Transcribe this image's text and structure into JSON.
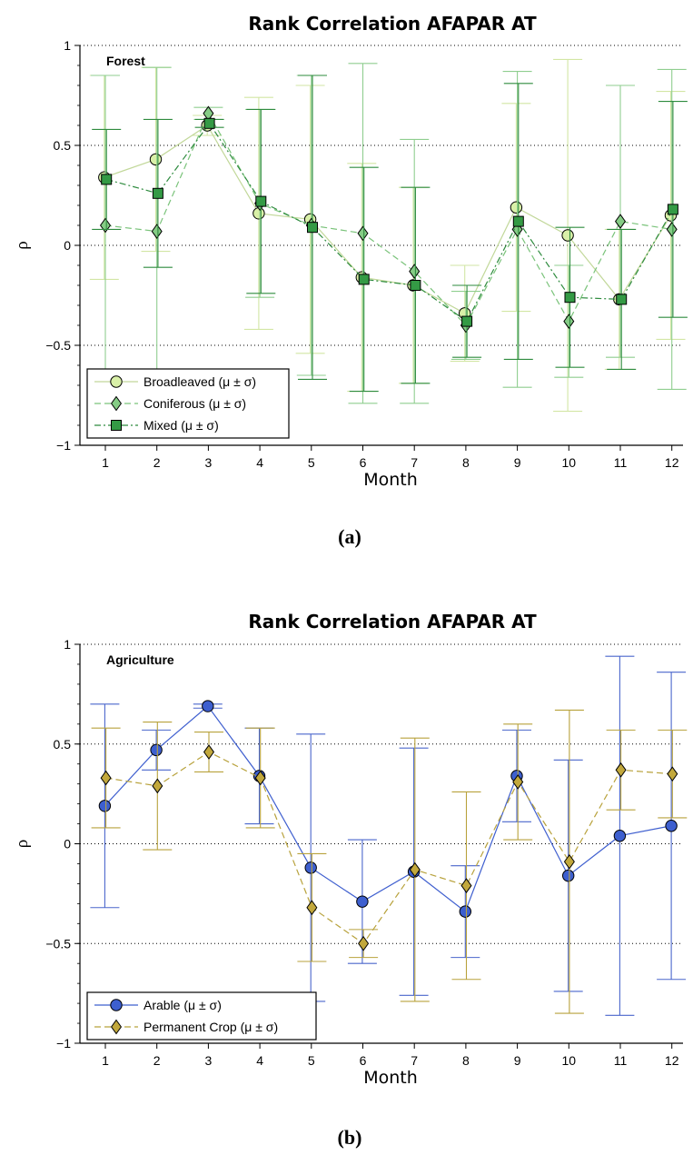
{
  "chart_data": [
    {
      "type": "line",
      "title": "Rank Correlation AFAPAR AT",
      "panel_label": "Forest",
      "caption": "(a)",
      "xlabel": "Month",
      "ylabel": "ρ",
      "categories": [
        "1",
        "2",
        "3",
        "4",
        "5",
        "6",
        "7",
        "8",
        "9",
        "10",
        "11",
        "12"
      ],
      "ylim": [
        -1,
        1
      ],
      "yticks": [
        1,
        0.5,
        0,
        -0.5,
        -1
      ],
      "ytick_labels": [
        "1",
        "0.5",
        "0",
        "−0.5",
        "−1"
      ],
      "grid": "horizontal dotted",
      "legend_position": "bottom-left",
      "series": [
        {
          "name": "Broadleaved (μ ± σ)",
          "marker": "circle",
          "line": "solid",
          "color": "#d2e6a4",
          "stroke": "#c2d89a",
          "marker_fill": "#d9f0a8",
          "values": [
            0.34,
            0.43,
            0.6,
            0.16,
            0.13,
            -0.16,
            -0.2,
            -0.34,
            0.19,
            0.05,
            -0.27,
            0.15
          ],
          "sigma": [
            0.51,
            0.46,
            0.05,
            0.58,
            0.67,
            0.57,
            0.49,
            0.24,
            0.52,
            0.88,
            0.35,
            0.62
          ]
        },
        {
          "name": "Coniferous (μ ± σ)",
          "marker": "diamond",
          "line": "dashed",
          "color": "#8fce8f",
          "stroke": "#7ac37a",
          "marker_fill": "#85cc85",
          "values": [
            0.1,
            0.07,
            0.66,
            0.21,
            0.1,
            0.06,
            -0.13,
            -0.4,
            0.08,
            -0.38,
            0.12,
            0.08
          ],
          "sigma": [
            0.75,
            0.82,
            0.03,
            0.47,
            0.75,
            0.85,
            0.66,
            0.17,
            0.79,
            0.28,
            0.68,
            0.8
          ]
        },
        {
          "name": "Mixed (μ ± σ)",
          "marker": "square",
          "line": "dashdot",
          "color": "#2e8b3e",
          "stroke": "#2e8b3e",
          "marker_fill": "#349a45",
          "values": [
            0.33,
            0.26,
            0.61,
            0.22,
            0.09,
            -0.17,
            -0.2,
            -0.38,
            0.12,
            -0.26,
            -0.27,
            0.18
          ],
          "sigma": [
            0.25,
            0.37,
            0.02,
            0.46,
            0.76,
            0.56,
            0.49,
            0.18,
            0.69,
            0.35,
            0.35,
            0.54
          ]
        }
      ]
    },
    {
      "type": "line",
      "title": "Rank Correlation AFAPAR AT",
      "panel_label": "Agriculture",
      "caption": "(b)",
      "xlabel": "Month",
      "ylabel": "ρ",
      "categories": [
        "1",
        "2",
        "3",
        "4",
        "5",
        "6",
        "7",
        "8",
        "9",
        "10",
        "11",
        "12"
      ],
      "ylim": [
        -1,
        1
      ],
      "yticks": [
        1,
        0.5,
        0,
        -0.5,
        -1
      ],
      "ytick_labels": [
        "1",
        "0.5",
        "0",
        "−0.5",
        "−1"
      ],
      "grid": "horizontal dotted",
      "legend_position": "bottom-left",
      "series": [
        {
          "name": "Arable (μ ± σ)",
          "marker": "circle",
          "line": "solid",
          "color": "#4a66cc",
          "stroke": "#3f5fcf",
          "marker_fill": "#3d5fcf",
          "values": [
            0.19,
            0.47,
            0.69,
            0.34,
            -0.12,
            -0.29,
            -0.14,
            -0.34,
            0.34,
            -0.16,
            0.04,
            0.09
          ],
          "sigma": [
            0.51,
            0.1,
            0.01,
            0.24,
            0.67,
            0.31,
            0.62,
            0.23,
            0.23,
            0.58,
            0.9,
            0.77
          ]
        },
        {
          "name": "Permanent Crop (μ ± σ)",
          "marker": "diamond",
          "line": "dashed",
          "color": "#b8a23c",
          "stroke": "#b8a23c",
          "marker_fill": "#c2a83c",
          "values": [
            0.33,
            0.29,
            0.46,
            0.33,
            -0.32,
            -0.5,
            -0.13,
            -0.21,
            0.31,
            -0.09,
            0.37,
            0.35
          ],
          "sigma": [
            0.25,
            0.32,
            0.1,
            0.25,
            0.27,
            0.07,
            0.66,
            0.47,
            0.29,
            0.76,
            0.2,
            0.22
          ]
        }
      ]
    }
  ]
}
